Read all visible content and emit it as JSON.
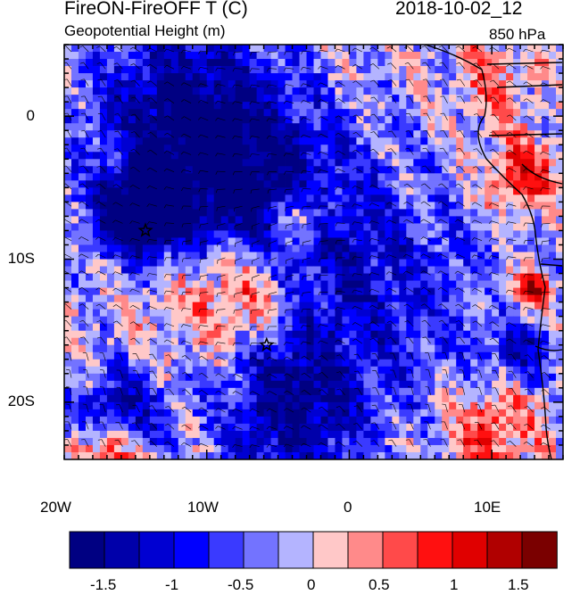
{
  "chart_data": {
    "type": "heatmap",
    "title_left": "FireON-FireOFF T (C)",
    "title_right": "2018-10-02_12",
    "subtitle_left": "Geopotential Height (m)",
    "subtitle_right": "850 hPa",
    "x_axis": {
      "range_deg": [
        -20,
        15
      ],
      "ticks": [
        {
          "value": -20,
          "label": "20W"
        },
        {
          "value": -10,
          "label": "10W"
        },
        {
          "value": 0,
          "label": "0"
        },
        {
          "value": 10,
          "label": "10E"
        }
      ]
    },
    "y_axis": {
      "range_deg": [
        -24,
        5
      ],
      "ticks": [
        {
          "value": 0,
          "label": "0"
        },
        {
          "value": -10,
          "label": "10S"
        },
        {
          "value": -20,
          "label": "20S"
        }
      ]
    },
    "colorbar": {
      "levels": [
        -1.75,
        -1.5,
        -1.25,
        -1,
        -0.75,
        -0.5,
        -0.25,
        0,
        0.25,
        0.5,
        0.75,
        1,
        1.25,
        1.5,
        1.75
      ],
      "colors": [
        "#000082",
        "#0000aa",
        "#0000d2",
        "#0000ff",
        "#3a3aff",
        "#7373ff",
        "#b4b4ff",
        "#ffc8c8",
        "#ff8a8a",
        "#ff4a4a",
        "#ff1010",
        "#e00000",
        "#b00000",
        "#7a0000"
      ],
      "labels": [
        {
          "value": -1.5,
          "label": "-1.5"
        },
        {
          "value": -1,
          "label": "-1"
        },
        {
          "value": -0.5,
          "label": "-0.5"
        },
        {
          "value": 0,
          "label": "0"
        },
        {
          "value": 0.5,
          "label": "0.5"
        },
        {
          "value": 1,
          "label": "1"
        },
        {
          "value": 1.5,
          "label": "1.5"
        }
      ]
    },
    "markers": [
      {
        "lon": -14.3,
        "lat": -8.0,
        "symbol": "star"
      },
      {
        "lon": -5.8,
        "lat": -16.0,
        "symbol": "star"
      }
    ],
    "field_features": [
      {
        "lon": -8,
        "lat": -5,
        "value": -1.6,
        "radius_deg": 7
      },
      {
        "lon": -15,
        "lat": -7,
        "value": -1.8,
        "radius_deg": 3
      },
      {
        "lon": 1,
        "lat": -12,
        "value": -0.9,
        "radius_deg": 8
      },
      {
        "lon": -7.5,
        "lat": -12,
        "value": 1.4,
        "radius_deg": 4
      },
      {
        "lon": -3.5,
        "lat": -7,
        "value": 1.2,
        "radius_deg": 2
      },
      {
        "lon": -13,
        "lat": -12.5,
        "value": 0.3,
        "radius_deg": 5
      },
      {
        "lon": -4,
        "lat": -20.5,
        "value": -1.3,
        "radius_deg": 5
      },
      {
        "lon": -16,
        "lat": -20.5,
        "value": -1.2,
        "radius_deg": 3
      },
      {
        "lon": 12,
        "lat": -4,
        "value": 1.2,
        "radius_deg": 2.5
      },
      {
        "lon": -12,
        "lat": 1.5,
        "value": -1.1,
        "radius_deg": 6
      },
      {
        "lon": -17,
        "lat": -23.5,
        "value": 1.3,
        "radius_deg": 2
      },
      {
        "lon": 10,
        "lat": -22,
        "value": 1.0,
        "radius_deg": 3
      },
      {
        "lon": 13,
        "lat": -12,
        "value": 1.5,
        "radius_deg": 1.2
      },
      {
        "lon": 10,
        "lat": 3,
        "value": 0.6,
        "radius_deg": 3
      },
      {
        "lon": 12,
        "lat": -16.5,
        "value": -1.0,
        "radius_deg": 2
      }
    ]
  }
}
